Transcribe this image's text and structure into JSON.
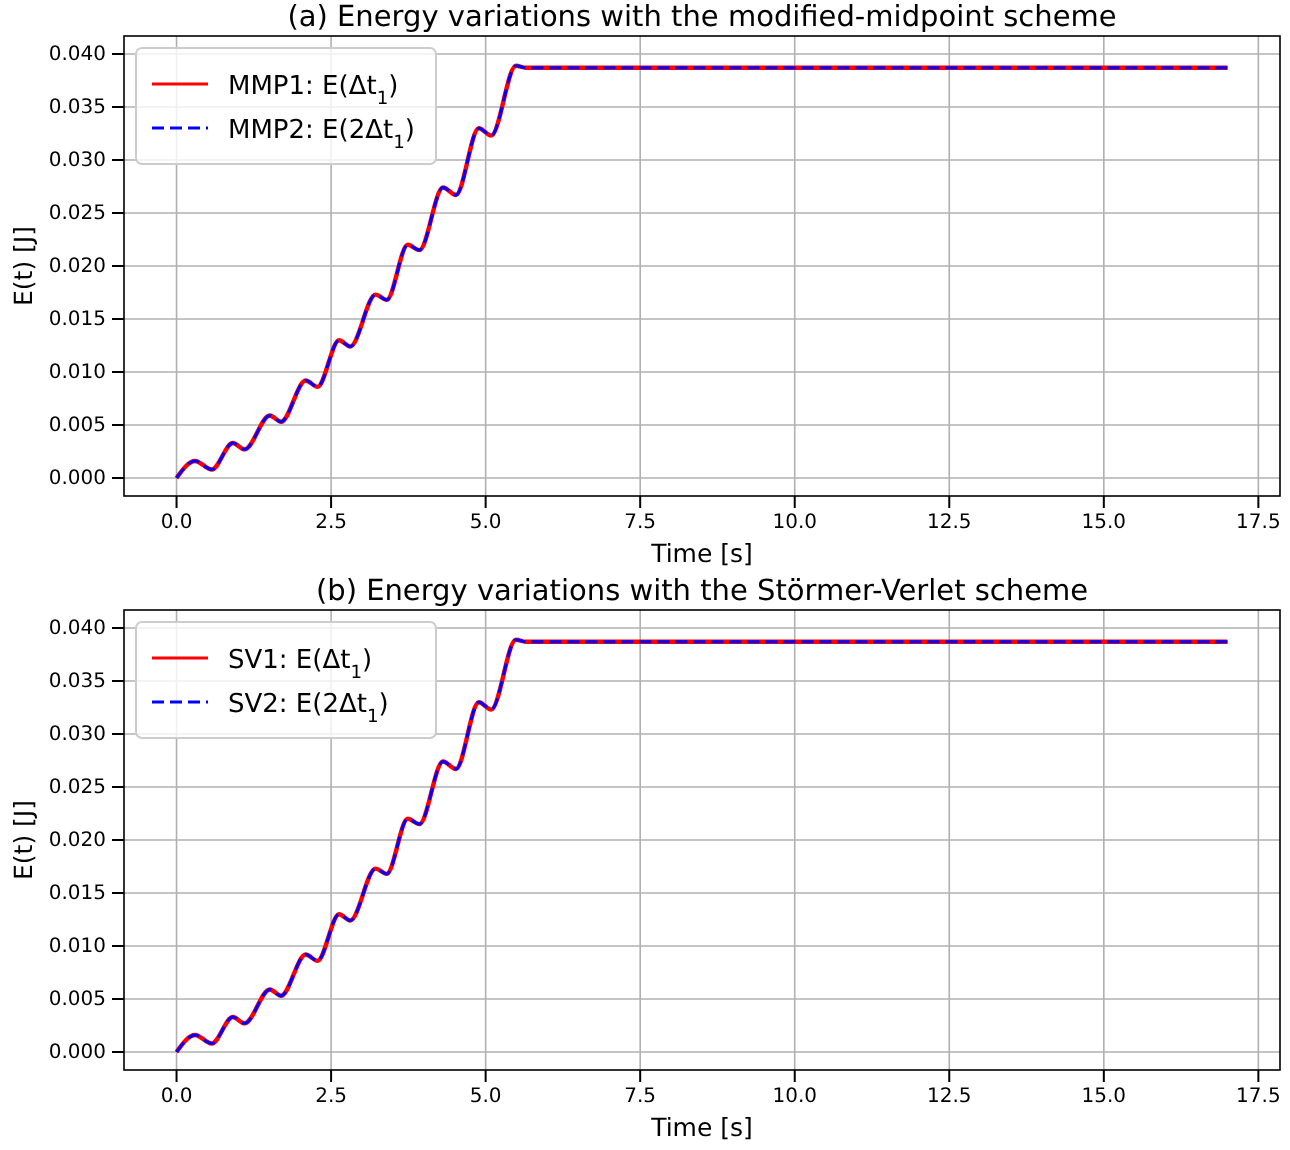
{
  "chart_data": [
    {
      "type": "line",
      "title": "(a) Energy variations with the modified-midpoint scheme",
      "xlabel": "Time [s]",
      "ylabel": "E(t) [J]",
      "xlim": [
        -0.85,
        17.85
      ],
      "ylim": [
        -0.0017,
        0.0417
      ],
      "xticks": [
        {
          "value": 0,
          "label": "0.0"
        },
        {
          "value": 2.5,
          "label": "2.5"
        },
        {
          "value": 5,
          "label": "5.0"
        },
        {
          "value": 7.5,
          "label": "7.5"
        },
        {
          "value": 10,
          "label": "10.0"
        },
        {
          "value": 12.5,
          "label": "12.5"
        },
        {
          "value": 15,
          "label": "15.0"
        },
        {
          "value": 17.5,
          "label": "17.5"
        }
      ],
      "yticks": [
        {
          "value": 0,
          "label": "0.000"
        },
        {
          "value": 0.005,
          "label": "0.005"
        },
        {
          "value": 0.01,
          "label": "0.010"
        },
        {
          "value": 0.015,
          "label": "0.015"
        },
        {
          "value": 0.02,
          "label": "0.020"
        },
        {
          "value": 0.025,
          "label": "0.025"
        },
        {
          "value": 0.03,
          "label": "0.030"
        },
        {
          "value": 0.035,
          "label": "0.035"
        },
        {
          "value": 0.04,
          "label": "0.040"
        }
      ],
      "grid": true,
      "legend": "top left",
      "x": [
        0,
        0.3,
        0.57,
        0.91,
        1.1,
        1.51,
        1.69,
        2.09,
        2.28,
        2.63,
        2.81,
        3.22,
        3.4,
        3.74,
        3.93,
        4.31,
        4.52,
        4.89,
        5.09,
        5.49,
        5.65,
        6,
        10,
        17
      ],
      "series": [
        {
          "name": "MMP1: E(Δt$_{1}$)",
          "color": "#ff0000",
          "line_style": "solid",
          "values": [
            0,
            0.0016,
            0.0008,
            0.0033,
            0.0027,
            0.0059,
            0.0053,
            0.0092,
            0.0086,
            0.013,
            0.0124,
            0.0173,
            0.0168,
            0.022,
            0.0215,
            0.0274,
            0.0267,
            0.033,
            0.0323,
            0.0389,
            0.0387,
            0.0387,
            0.0387,
            0.0387
          ]
        },
        {
          "name": "MMP2: E(2Δt$_{1}$)",
          "color": "#0000ff",
          "line_style": "dashed",
          "values": [
            0,
            0.0016,
            0.0008,
            0.0033,
            0.0027,
            0.0059,
            0.0053,
            0.0092,
            0.0086,
            0.013,
            0.0124,
            0.0173,
            0.0168,
            0.022,
            0.0215,
            0.0274,
            0.0267,
            0.033,
            0.0323,
            0.0389,
            0.0387,
            0.0387,
            0.0387,
            0.0387
          ]
        }
      ]
    },
    {
      "type": "line",
      "title": "(b) Energy variations with the Störmer-Verlet scheme",
      "xlabel": "Time [s]",
      "ylabel": "E(t) [J]",
      "xlim": [
        -0.85,
        17.85
      ],
      "ylim": [
        -0.0017,
        0.0417
      ],
      "xticks": [
        {
          "value": 0,
          "label": "0.0"
        },
        {
          "value": 2.5,
          "label": "2.5"
        },
        {
          "value": 5,
          "label": "5.0"
        },
        {
          "value": 7.5,
          "label": "7.5"
        },
        {
          "value": 10,
          "label": "10.0"
        },
        {
          "value": 12.5,
          "label": "12.5"
        },
        {
          "value": 15,
          "label": "15.0"
        },
        {
          "value": 17.5,
          "label": "17.5"
        }
      ],
      "yticks": [
        {
          "value": 0,
          "label": "0.000"
        },
        {
          "value": 0.005,
          "label": "0.005"
        },
        {
          "value": 0.01,
          "label": "0.010"
        },
        {
          "value": 0.015,
          "label": "0.015"
        },
        {
          "value": 0.02,
          "label": "0.020"
        },
        {
          "value": 0.025,
          "label": "0.025"
        },
        {
          "value": 0.03,
          "label": "0.030"
        },
        {
          "value": 0.035,
          "label": "0.035"
        },
        {
          "value": 0.04,
          "label": "0.040"
        }
      ],
      "grid": true,
      "legend": "top left",
      "x": [
        0,
        0.3,
        0.57,
        0.91,
        1.1,
        1.51,
        1.69,
        2.09,
        2.28,
        2.63,
        2.81,
        3.22,
        3.4,
        3.74,
        3.93,
        4.31,
        4.52,
        4.89,
        5.09,
        5.49,
        5.65,
        6,
        10,
        17
      ],
      "series": [
        {
          "name": "SV1: E(Δt$_{1}$)",
          "color": "#ff0000",
          "line_style": "solid",
          "values": [
            0,
            0.0016,
            0.0008,
            0.0033,
            0.0027,
            0.0059,
            0.0053,
            0.0092,
            0.0086,
            0.013,
            0.0124,
            0.0173,
            0.0168,
            0.022,
            0.0215,
            0.0274,
            0.0267,
            0.033,
            0.0323,
            0.0389,
            0.0387,
            0.0387,
            0.0387,
            0.0387
          ]
        },
        {
          "name": "SV2: E(2Δt$_{1}$)",
          "color": "#0000ff",
          "line_style": "dashed",
          "values": [
            0,
            0.0016,
            0.0008,
            0.0033,
            0.0027,
            0.0059,
            0.0053,
            0.0092,
            0.0086,
            0.013,
            0.0124,
            0.0173,
            0.0168,
            0.022,
            0.0215,
            0.0274,
            0.0267,
            0.033,
            0.0323,
            0.0389,
            0.0387,
            0.0387,
            0.0387,
            0.0387
          ]
        }
      ]
    }
  ]
}
